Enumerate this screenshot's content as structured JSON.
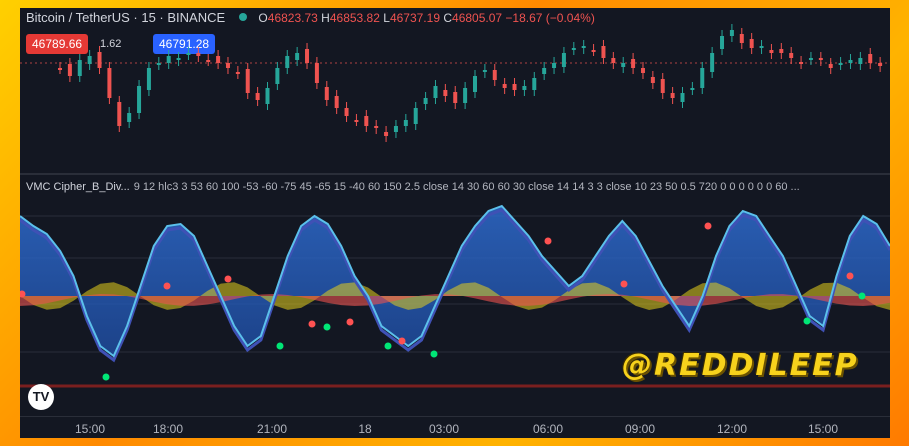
{
  "header": {
    "symbol": "Bitcoin / TetherUS · 15 · BINANCE",
    "open_label": "O",
    "open": "46823.73",
    "high_label": "H",
    "high": "46853.82",
    "low_label": "L",
    "low": "46737.19",
    "close_label": "C",
    "close": "46805.07",
    "change": "−18.67 (−0.04%)"
  },
  "trade": {
    "bid": "46789.66",
    "spread": "1.62",
    "ask": "46791.28"
  },
  "indicator": {
    "name": "VMC Cipher_B_Div...",
    "params": "9 12 hlc3 3 53 60 100 -53 -60 -75 45 -65 15 -40 60 150 2.5 close 14 30 60 60 30 close 14 14 3 3 close 10 23 50 0.5 720 0 0 0 0 0 0 60 ..."
  },
  "time_axis": [
    "15:00",
    "18:00",
    "21:00",
    "18",
    "03:00",
    "06:00",
    "09:00",
    "12:00",
    "15:00"
  ],
  "logo_text": "TV",
  "watermark": "@REDDILEEP",
  "colors": {
    "up": "#26a69a",
    "down": "#ef5350",
    "wave1": "#5bc0eb",
    "wave2": "#3f51b5",
    "money_flow_pos": "#e6d01b",
    "money_flow_neg": "#ef5350",
    "dot_red": "#ff5252",
    "dot_green": "#00e676"
  },
  "chart_data": {
    "type": "candlestick",
    "ohlc_shown": {
      "open": 46823.73,
      "high": 46853.82,
      "low": 46737.19,
      "close": 46805.07
    }
  }
}
